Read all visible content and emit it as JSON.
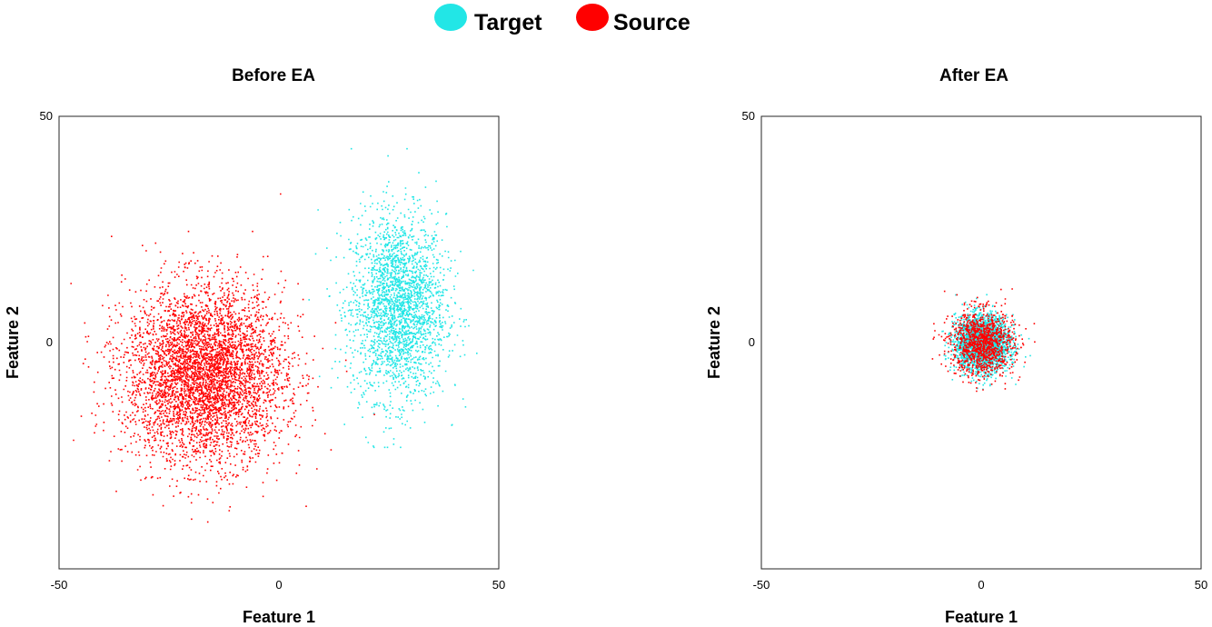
{
  "legend": {
    "placement": "top-center",
    "items": [
      {
        "label": "Target",
        "color": "#22e6e6"
      },
      {
        "label": "Source",
        "color": "#ff0000"
      }
    ]
  },
  "chart_data": [
    {
      "type": "scatter",
      "title": "Before EA",
      "xlabel": "Feature 1",
      "ylabel": "Feature 2",
      "xlim": [
        -50,
        50
      ],
      "ylim": [
        -50,
        50
      ],
      "xticks": [
        -50,
        0,
        50
      ],
      "yticks": [
        -50,
        0,
        50
      ],
      "grid": false,
      "series": [
        {
          "name": "Target",
          "color": "#22e6e6",
          "point_count": 9000,
          "cluster": {
            "center": [
              27,
              8
            ],
            "spread": [
              9,
              17
            ],
            "x_range": [
              1,
              47
            ],
            "y_range": [
              -23,
              43
            ]
          }
        },
        {
          "name": "Source",
          "color": "#ff0000",
          "point_count": 17000,
          "cluster": {
            "center": [
              -17,
              -7
            ],
            "spread": [
              15,
              16
            ],
            "x_range": [
              -48,
              23
            ],
            "y_range": [
              -44,
              33
            ]
          }
        }
      ]
    },
    {
      "type": "scatter",
      "title": "After EA",
      "xlabel": "Feature 1",
      "ylabel": "Feature 2",
      "xlim": [
        -50,
        50
      ],
      "ylim": [
        -50,
        50
      ],
      "xticks": [
        -50,
        0,
        50
      ],
      "yticks": [
        -50,
        0,
        50
      ],
      "grid": false,
      "series": [
        {
          "name": "Target",
          "color": "#22e6e6",
          "point_count": 9000,
          "cluster": {
            "center": [
              0,
              0
            ],
            "spread": [
              5,
              5
            ],
            "x_range": [
              -11,
              11
            ],
            "y_range": [
              -11,
              11
            ]
          }
        },
        {
          "name": "Source",
          "color": "#ff0000",
          "point_count": 4000,
          "cluster": {
            "center": [
              0,
              0
            ],
            "spread": [
              6,
              6
            ],
            "x_range": [
              -12,
              12
            ],
            "y_range": [
              -12,
              12
            ]
          }
        }
      ]
    }
  ]
}
